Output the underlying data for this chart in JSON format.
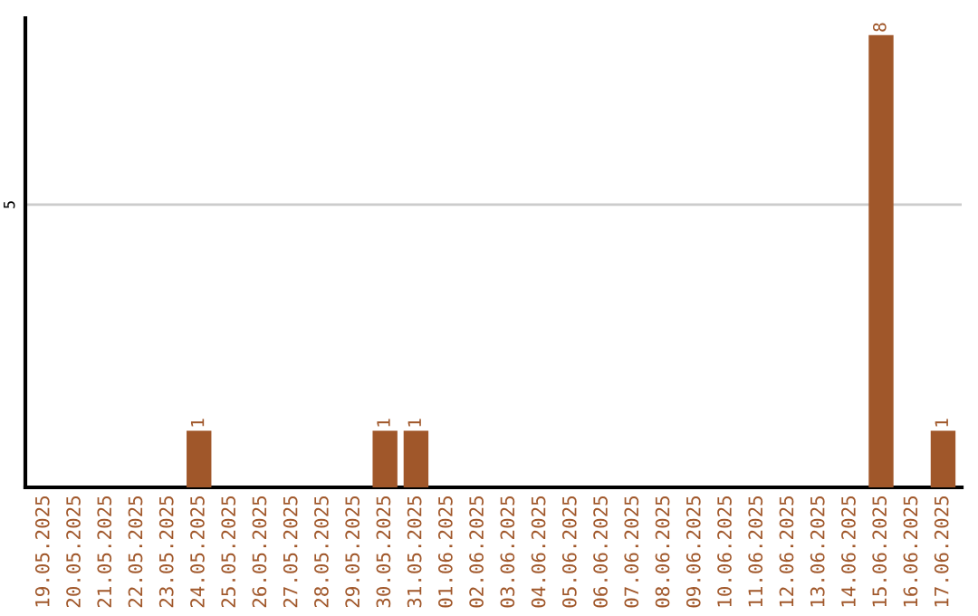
{
  "chart_data": {
    "type": "bar",
    "categories": [
      "19.05.2025",
      "20.05.2025",
      "21.05.2025",
      "22.05.2025",
      "23.05.2025",
      "24.05.2025",
      "25.05.2025",
      "26.05.2025",
      "27.05.2025",
      "28.05.2025",
      "29.05.2025",
      "30.05.2025",
      "31.05.2025",
      "01.06.2025",
      "02.06.2025",
      "03.06.2025",
      "04.06.2025",
      "05.06.2025",
      "06.06.2025",
      "07.06.2025",
      "08.06.2025",
      "09.06.2025",
      "10.06.2025",
      "11.06.2025",
      "12.06.2025",
      "13.06.2025",
      "14.06.2025",
      "15.06.2025",
      "16.06.2025",
      "17.06.2025"
    ],
    "values": [
      0,
      0,
      0,
      0,
      0,
      1,
      0,
      0,
      0,
      0,
      0,
      1,
      1,
      0,
      0,
      0,
      0,
      0,
      0,
      0,
      0,
      0,
      0,
      0,
      0,
      0,
      0,
      8,
      0,
      1
    ],
    "value_labels": [
      null,
      null,
      null,
      null,
      null,
      "1",
      null,
      null,
      null,
      null,
      null,
      "1",
      "1",
      null,
      null,
      null,
      null,
      null,
      null,
      null,
      null,
      null,
      null,
      null,
      null,
      null,
      null,
      "8",
      null,
      "1"
    ],
    "color": "#a0572a",
    "ylim": [
      0,
      8.3
    ],
    "yticks": [
      5
    ],
    "grid": "y",
    "legend": false
  }
}
